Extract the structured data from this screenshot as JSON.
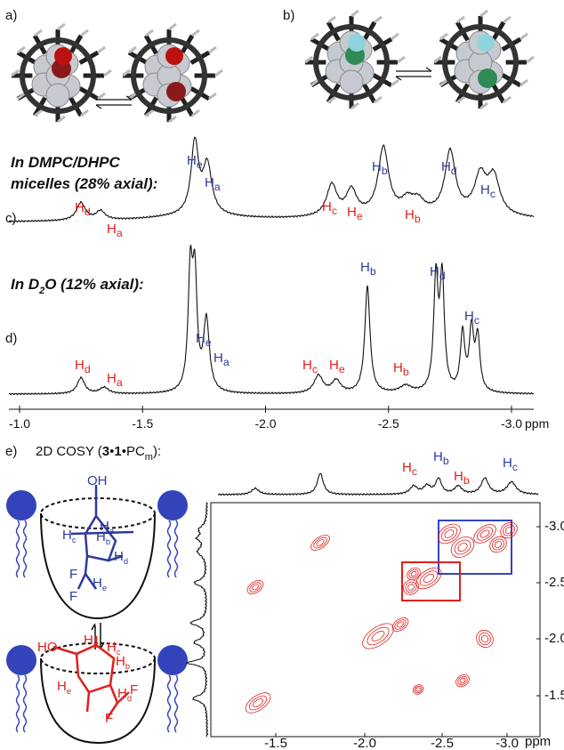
{
  "panel_labels": [
    "a)",
    "b)",
    "c)",
    "d)",
    "e)"
  ],
  "spectrum_c": {
    "title": [
      "In DMPC/DHPC",
      "micelles (28% axial):"
    ],
    "labels": [
      {
        "t": "H",
        "sub": "d",
        "color": "red"
      },
      {
        "t": "H",
        "sub": "a",
        "color": "red"
      },
      {
        "t": "H",
        "sub": "e",
        "color": "blue"
      },
      {
        "t": "H",
        "sub": "a",
        "color": "blue"
      },
      {
        "t": "H",
        "sub": "c",
        "color": "red"
      },
      {
        "t": "H",
        "sub": "e",
        "color": "red"
      },
      {
        "t": "H",
        "sub": "b",
        "color": "blue"
      },
      {
        "t": "H",
        "sub": "b",
        "color": "red"
      },
      {
        "t": "H",
        "sub": "d",
        "color": "blue"
      },
      {
        "t": "H",
        "sub": "c",
        "color": "blue"
      }
    ]
  },
  "spectrum_d": {
    "title": [
      {
        "t": "In D"
      },
      {
        "t": "2",
        "fmt": "sub"
      },
      {
        "t": "O (12% axial):"
      }
    ],
    "labels": [
      {
        "t": "H",
        "sub": "d",
        "color": "red"
      },
      {
        "t": "H",
        "sub": "a",
        "color": "red"
      },
      {
        "t": "H",
        "sub": "e",
        "color": "blue"
      },
      {
        "t": "H",
        "sub": "a",
        "color": "blue"
      },
      {
        "t": "H",
        "sub": "c",
        "color": "red"
      },
      {
        "t": "H",
        "sub": "e",
        "color": "red"
      },
      {
        "t": "H",
        "sub": "b",
        "color": "blue"
      },
      {
        "t": "H",
        "sub": "b",
        "color": "red"
      },
      {
        "t": "H",
        "sub": "d",
        "color": "blue"
      },
      {
        "t": "H",
        "sub": "c",
        "color": "blue"
      }
    ]
  },
  "axis": {
    "ticks": [
      "-1.0",
      "-1.5",
      "-2.0",
      "-2.5",
      "-3.0"
    ],
    "unit": "ppm"
  },
  "cosy": {
    "title": [
      {
        "t": "2D COSY ("
      },
      {
        "t": "3",
        "fmt": "bold"
      },
      {
        "t": "•"
      },
      {
        "t": "1",
        "fmt": "bold"
      },
      {
        "t": "•PC"
      },
      {
        "t": "m",
        "fmt": "sub"
      },
      {
        "t": "):"
      }
    ],
    "top_labels": [
      {
        "t": "H",
        "sub": "c",
        "color": "red"
      },
      {
        "t": "H",
        "sub": "b",
        "color": "blue"
      },
      {
        "t": "H",
        "sub": "b",
        "color": "red"
      },
      {
        "t": "H",
        "sub": "c",
        "color": "blue"
      }
    ],
    "x_ticks": [
      "-1.5",
      "-2.0",
      "-2.5",
      "-3.0"
    ],
    "x_unit": "ppm",
    "y_ticks": [
      "-3.0",
      "-2.5",
      "-2.0",
      "-1.5"
    ]
  },
  "equatorial_labels": [
    {
      "t": "OH",
      "color": "blue"
    },
    {
      "t": "H",
      "sub": "b",
      "color": "blue"
    },
    {
      "t": "H",
      "sub": "a",
      "color": "blue"
    },
    {
      "t": "H",
      "sub": "c",
      "color": "blue"
    },
    {
      "t": "H",
      "sub": "d",
      "color": "blue"
    },
    {
      "t": "F",
      "color": "blue"
    },
    {
      "t": "H",
      "sub": "e",
      "color": "blue"
    },
    {
      "t": "F",
      "color": "blue"
    }
  ],
  "axial_labels": [
    {
      "t": "HO",
      "color": "red"
    },
    {
      "t": "H",
      "sub": "a",
      "color": "red"
    },
    {
      "t": "H",
      "sub": "c",
      "color": "red"
    },
    {
      "t": "H",
      "sub": "b",
      "color": "red"
    },
    {
      "t": "H",
      "sub": "e",
      "color": "red"
    },
    {
      "t": "H",
      "sub": "d",
      "color": "red"
    },
    {
      "t": "F",
      "color": "red"
    },
    {
      "t": "F",
      "color": "red"
    }
  ]
}
